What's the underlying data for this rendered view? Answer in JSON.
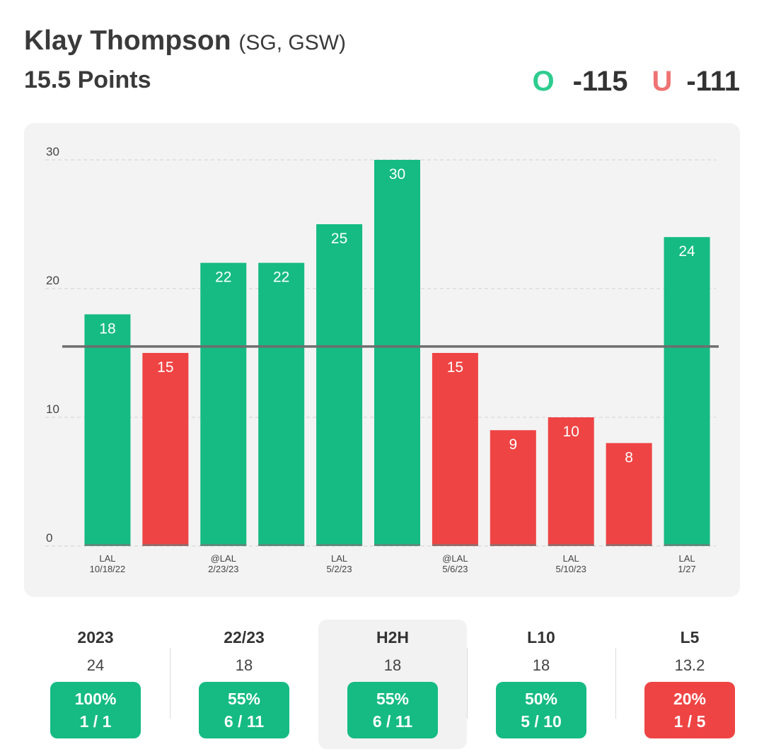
{
  "header": {
    "player_name": "Klay Thompson",
    "player_meta": "(SG, GSW)",
    "prop_label": "15.5 Points",
    "over_letter": "O",
    "over_odds": "-115",
    "under_letter": "U",
    "under_odds": "-111"
  },
  "colors": {
    "over": "#15bb82",
    "under": "#ef4444",
    "line": "#6e6e6e",
    "grid": "#dcdcdc"
  },
  "chart_data": {
    "type": "bar",
    "title": "Klay Thompson 15.5 Points",
    "xlabel": "",
    "ylabel": "",
    "ylim": [
      0,
      30
    ],
    "yticks": [
      0,
      10,
      20,
      30
    ],
    "threshold": 15.5,
    "grid": true,
    "values": [
      18,
      15,
      22,
      22,
      25,
      30,
      15,
      9,
      10,
      8,
      24
    ],
    "results": [
      "over",
      "under",
      "over",
      "over",
      "over",
      "over",
      "under",
      "under",
      "under",
      "under",
      "over"
    ],
    "tick_labels": [
      [
        "LAL",
        "10/18/22"
      ],
      null,
      [
        "@LAL",
        "2/23/23"
      ],
      null,
      [
        "LAL",
        "5/2/23"
      ],
      null,
      [
        "@LAL",
        "5/6/23"
      ],
      null,
      [
        "LAL",
        "5/10/23"
      ],
      null,
      [
        "LAL",
        "1/27"
      ]
    ]
  },
  "stats": [
    {
      "label": "2023",
      "value": "24",
      "pct": "100%",
      "record": "1 / 1",
      "result": "over",
      "highlight": false
    },
    {
      "label": "22/23",
      "value": "18",
      "pct": "55%",
      "record": "6 / 11",
      "result": "over",
      "highlight": false
    },
    {
      "label": "H2H",
      "value": "18",
      "pct": "55%",
      "record": "6 / 11",
      "result": "over",
      "highlight": true
    },
    {
      "label": "L10",
      "value": "18",
      "pct": "50%",
      "record": "5 / 10",
      "result": "over",
      "highlight": false
    },
    {
      "label": "L5",
      "value": "13.2",
      "pct": "20%",
      "record": "1 / 5",
      "result": "under",
      "highlight": false
    }
  ]
}
